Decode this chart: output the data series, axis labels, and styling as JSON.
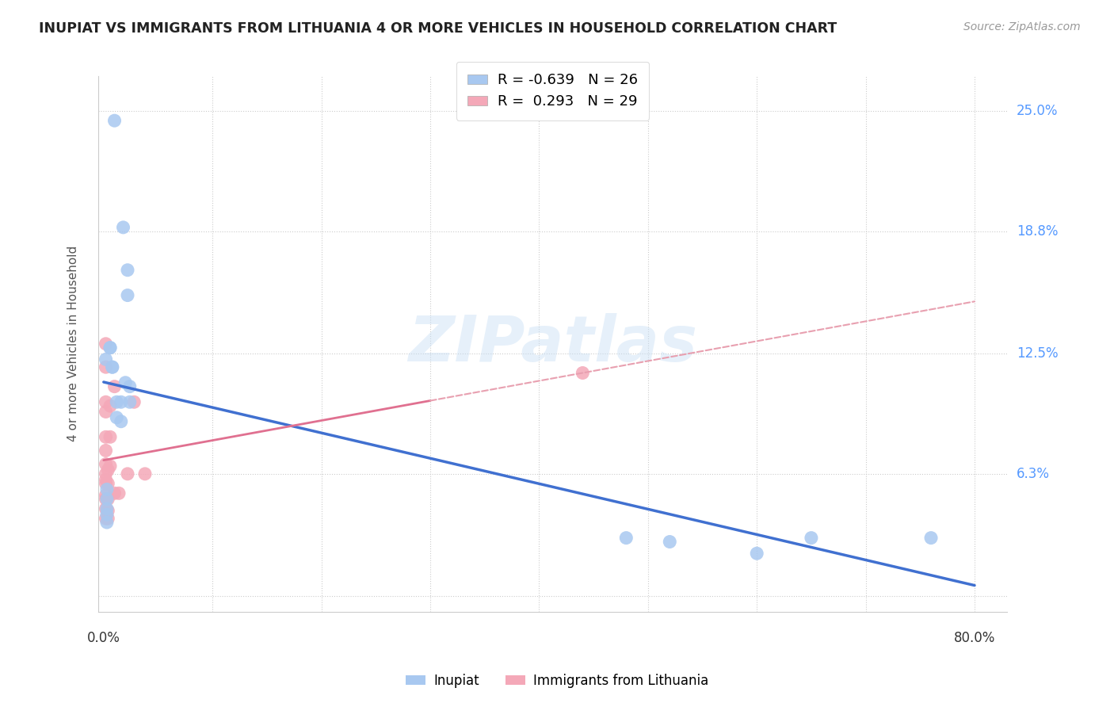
{
  "title": "INUPIAT VS IMMIGRANTS FROM LITHUANIA 4 OR MORE VEHICLES IN HOUSEHOLD CORRELATION CHART",
  "source": "Source: ZipAtlas.com",
  "ylabel": "4 or more Vehicles in Household",
  "inupiat_R": -0.639,
  "inupiat_N": 26,
  "lithuania_R": 0.293,
  "lithuania_N": 29,
  "inupiat_color": "#a8c8f0",
  "lithuania_color": "#f4a8b8",
  "inupiat_line_color": "#4070d0",
  "lithuania_line_color": "#e07090",
  "lithuania_line_style": "solid",
  "lithuania_dashed_color": "#e8a0b0",
  "watermark": "ZIPatlas",
  "inupiat_x": [
    0.002,
    0.01,
    0.018,
    0.022,
    0.022,
    0.006,
    0.006,
    0.008,
    0.008,
    0.012,
    0.012,
    0.016,
    0.016,
    0.02,
    0.024,
    0.024,
    0.003,
    0.003,
    0.003,
    0.003,
    0.003,
    0.48,
    0.52,
    0.6,
    0.65,
    0.76
  ],
  "inupiat_y": [
    0.122,
    0.245,
    0.19,
    0.168,
    0.155,
    0.128,
    0.128,
    0.118,
    0.118,
    0.1,
    0.092,
    0.1,
    0.09,
    0.11,
    0.108,
    0.1,
    0.055,
    0.05,
    0.045,
    0.042,
    0.038,
    0.03,
    0.028,
    0.022,
    0.03,
    0.03
  ],
  "lithuania_x": [
    0.002,
    0.002,
    0.002,
    0.002,
    0.002,
    0.002,
    0.002,
    0.002,
    0.002,
    0.002,
    0.002,
    0.002,
    0.002,
    0.002,
    0.004,
    0.004,
    0.004,
    0.004,
    0.004,
    0.006,
    0.006,
    0.006,
    0.01,
    0.01,
    0.014,
    0.022,
    0.028,
    0.038,
    0.44
  ],
  "lithuania_y": [
    0.13,
    0.118,
    0.1,
    0.095,
    0.082,
    0.075,
    0.068,
    0.063,
    0.06,
    0.058,
    0.052,
    0.05,
    0.045,
    0.04,
    0.065,
    0.058,
    0.05,
    0.044,
    0.04,
    0.098,
    0.082,
    0.067,
    0.108,
    0.053,
    0.053,
    0.063,
    0.1,
    0.063,
    0.115
  ],
  "y_ticks": [
    0.0,
    0.063,
    0.125,
    0.188,
    0.25
  ],
  "y_tick_labels": [
    "",
    "6.3%",
    "12.5%",
    "18.8%",
    "25.0%"
  ],
  "x_ticks": [
    0.0,
    0.1,
    0.2,
    0.3,
    0.4,
    0.5,
    0.6,
    0.7,
    0.8
  ],
  "xlim": [
    -0.005,
    0.83
  ],
  "ylim": [
    -0.008,
    0.268
  ]
}
